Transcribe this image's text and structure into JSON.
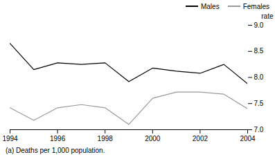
{
  "chart_data": {
    "type": "line",
    "ylabel": "rate",
    "annotations": [
      "(a) Deaths per 1,000 population."
    ],
    "x": [
      1994,
      1995,
      1996,
      1997,
      1998,
      1999,
      2000,
      2001,
      2002,
      2003,
      2004
    ],
    "series": [
      {
        "name": "Males",
        "color": "#000000",
        "values": [
          8.65,
          8.15,
          8.28,
          8.25,
          8.28,
          7.92,
          8.18,
          8.12,
          8.08,
          8.25,
          7.88
        ]
      },
      {
        "name": "Females",
        "color": "#999999",
        "values": [
          7.42,
          7.18,
          7.42,
          7.48,
          7.42,
          7.1,
          7.6,
          7.72,
          7.72,
          7.68,
          7.4
        ]
      }
    ],
    "xlim": [
      1994,
      2004
    ],
    "xticks": [
      1994,
      1996,
      1998,
      2000,
      2002,
      2004
    ],
    "ylim": [
      7.0,
      9.0
    ],
    "yticks": [
      {
        "value": 7.0,
        "label": "7.0"
      },
      7.5,
      {
        "value": 8.0,
        "label": "8.0"
      },
      8.5,
      {
        "value": 9.0,
        "label": "9.0"
      }
    ],
    "grid": false,
    "legend": "upper right"
  }
}
